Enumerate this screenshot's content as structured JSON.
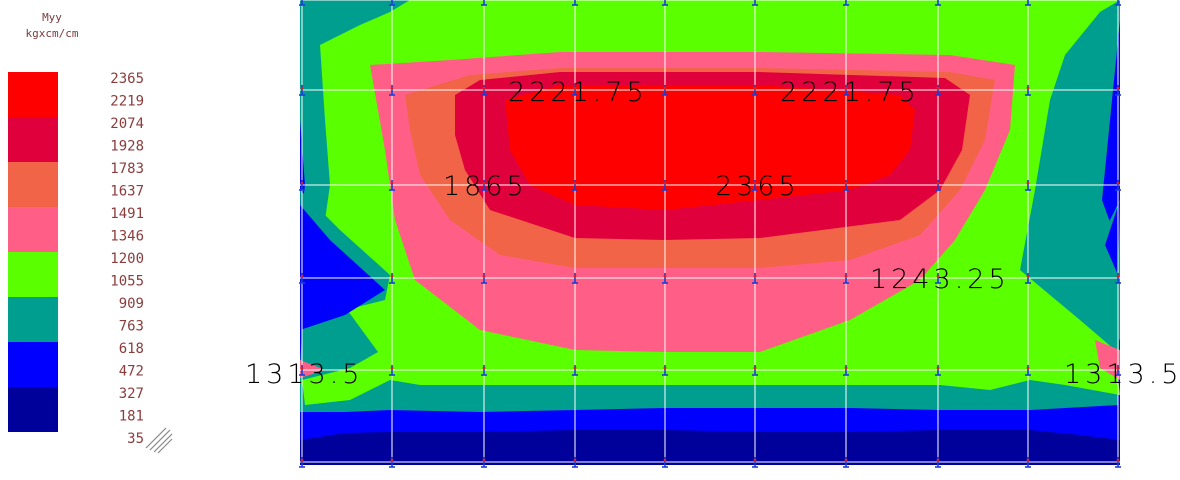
{
  "legend": {
    "title": "Myy",
    "unit": "kgxcm/cm",
    "colors": [
      "#ff0000",
      "#e0003c",
      "#f26448",
      "#ff5f86",
      "#5aff00",
      "#009e8e",
      "#0000ff",
      "#00009a"
    ],
    "values": [
      "2365",
      "2219",
      "2074",
      "1928",
      "1783",
      "1637",
      "1491",
      "1346",
      "1200",
      "1055",
      "909",
      "763",
      "618",
      "472",
      "327",
      "181",
      "35"
    ]
  },
  "plot_labels": [
    {
      "text": "2221.75"
    },
    {
      "text": "2221.75"
    },
    {
      "text": "1865"
    },
    {
      "text": "2365"
    },
    {
      "text": "1243.25"
    },
    {
      "text": "1313.5"
    },
    {
      "text": "1313.5"
    }
  ],
  "grid_color": "#ffffff",
  "support_color": "#1a3fd6",
  "support_accent_color": "#e02020"
}
